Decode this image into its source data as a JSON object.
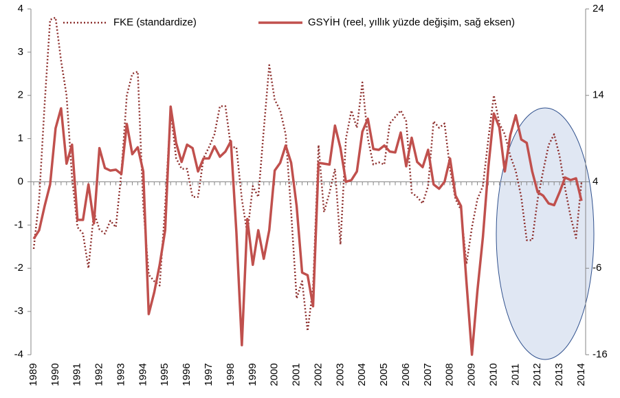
{
  "chart_data": {
    "type": "line",
    "legend": "top",
    "categories": [
      "1989",
      null,
      null,
      null,
      "1990",
      null,
      null,
      null,
      "1991",
      null,
      null,
      null,
      "1992",
      null,
      null,
      null,
      "1993",
      null,
      null,
      null,
      "1994",
      null,
      null,
      null,
      "1995",
      null,
      null,
      null,
      "1996",
      null,
      null,
      null,
      "1997",
      null,
      null,
      null,
      "1998",
      null,
      null,
      null,
      "1999",
      null,
      null,
      null,
      "2000",
      null,
      null,
      null,
      "2001",
      null,
      null,
      null,
      "2002",
      null,
      null,
      null,
      "2003",
      null,
      null,
      null,
      "2004",
      null,
      null,
      null,
      "2005",
      null,
      null,
      null,
      "2006",
      null,
      null,
      null,
      "2007",
      null,
      null,
      null,
      "2008",
      null,
      null,
      null,
      "2009",
      null,
      null,
      null,
      "2010",
      null,
      null,
      null,
      "2011",
      null,
      null,
      null,
      "2012",
      null,
      null,
      null,
      "2013",
      null,
      null,
      null,
      "2014"
    ],
    "series": [
      {
        "name": "FKE (standardize)",
        "color": "#8c2d2b",
        "dash": "dotted",
        "values": [
          -1.55,
          -0.4,
          1.8,
          3.75,
          3.8,
          2.8,
          2.0,
          0.1,
          -1.05,
          -1.2,
          -2.0,
          -0.7,
          -1.1,
          -1.2,
          -0.9,
          -1.05,
          0.2,
          2.0,
          2.5,
          2.55,
          -0.55,
          -2.15,
          -2.3,
          -2.4,
          -0.55,
          1.65,
          0.55,
          0.3,
          0.3,
          -0.35,
          -0.35,
          0.55,
          0.8,
          1.1,
          1.75,
          1.75,
          0.8,
          0.8,
          -0.4,
          -1.2,
          -0.1,
          -0.35,
          1.2,
          2.7,
          1.9,
          1.65,
          1.1,
          -0.7,
          -2.7,
          -2.3,
          -3.45,
          -2.45,
          0.85,
          -0.7,
          -0.25,
          0.3,
          -1.45,
          1.0,
          1.65,
          1.25,
          2.3,
          1.0,
          0.4,
          0.45,
          0.4,
          1.35,
          1.5,
          1.65,
          1.4,
          -0.25,
          -0.35,
          -0.5,
          -0.1,
          1.4,
          1.25,
          1.35,
          0.3,
          -0.4,
          -0.65,
          -1.9,
          -1.05,
          -0.4,
          -0.1,
          1.0,
          2.0,
          1.35,
          1.1,
          0.6,
          0.25,
          -0.35,
          -1.35,
          -1.35,
          -0.4,
          0.25,
          0.85,
          1.1,
          0.6,
          -0.15,
          -0.8,
          -1.3,
          0.0
        ]
      },
      {
        "name": "GSYİH (reel, yıllık yüzde değişim, sağ eksen)",
        "color": "#c0504d",
        "dash": "solid",
        "axis": "y2",
        "values": [
          -2.6,
          -1.6,
          1.2,
          3.7,
          10.2,
          12.5,
          6.1,
          8.3,
          -0.4,
          -0.4,
          3.7,
          -0.8,
          7.9,
          5.6,
          5.3,
          5.4,
          4.9,
          10.7,
          7.2,
          8.0,
          5.2,
          -11.3,
          -8.8,
          -5.6,
          -1.6,
          12.7,
          8.5,
          6.3,
          8.3,
          7.9,
          5.2,
          6.7,
          6.7,
          8.1,
          6.9,
          7.5,
          8.7,
          -1.8,
          -14.9,
          -0.3,
          -5.6,
          -1.6,
          -4.9,
          -1.6,
          5.3,
          6.2,
          8.2,
          6.2,
          1.2,
          -6.5,
          -6.8,
          -10.4,
          6.2,
          6.1,
          6.0,
          10.5,
          7.9,
          4.0,
          4.2,
          5.2,
          9.8,
          11.3,
          7.8,
          7.7,
          8.2,
          7.5,
          7.4,
          9.7,
          5.8,
          9.1,
          6.3,
          5.7,
          7.7,
          3.7,
          3.2,
          4.0,
          6.7,
          2.4,
          1.2,
          -7.6,
          -16,
          -8.6,
          -2.4,
          5.7,
          11.9,
          10.3,
          5.2,
          9.4,
          11.7,
          8.9,
          8.5,
          5.2,
          2.8,
          2.4,
          1.5,
          1.3,
          2.8,
          4.5,
          4.2,
          4.4,
          1.8
        ]
      }
    ],
    "ylim": [
      -4,
      4
    ],
    "yticks": [
      -4,
      -3,
      -2,
      -1,
      0,
      1,
      2,
      3,
      4
    ],
    "y2lim": [
      -16,
      24
    ],
    "y2ticks": [
      -16,
      -6,
      4,
      14,
      24
    ]
  }
}
